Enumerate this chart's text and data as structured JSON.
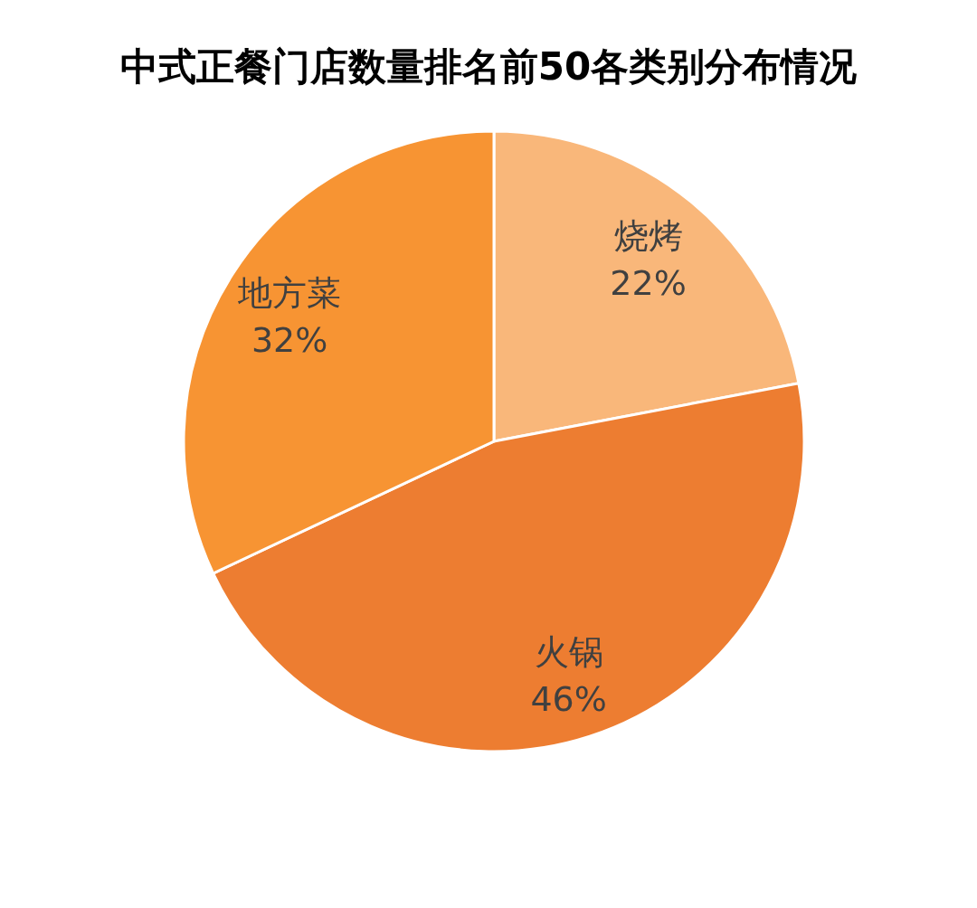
{
  "chart_data": {
    "type": "pie",
    "title": "中式正餐门店数量排名前50各类别分布情况",
    "categories": [
      "烧烤",
      "火锅",
      "地方菜"
    ],
    "values": [
      22,
      46,
      32
    ],
    "colors": [
      "#f9b77a",
      "#ed7d31",
      "#f79433"
    ],
    "value_labels": [
      "22%",
      "46%",
      "32%"
    ]
  }
}
